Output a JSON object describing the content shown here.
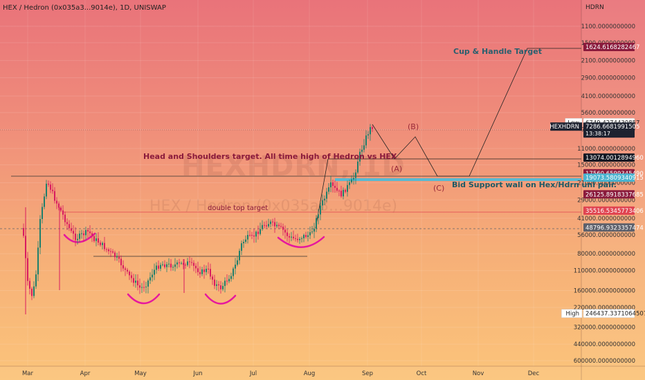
{
  "header": {
    "symbol_line": "HEX / Hedron (0x035a3...9014e), 1D, UNISWAP"
  },
  "watermark": {
    "ticker": "HEXHDRN, 1D",
    "name": "HEX / Hedron (0x035a3...9014e)"
  },
  "chart_data": {
    "type": "candlestick",
    "title": "HEX / Hedron (0x035a3...9014e), 1D, UNISWAP",
    "yaxis_title": "HDRN",
    "yaxis_scale": "log",
    "yaxis_inverted": true,
    "y_ticks": [
      "1100.0000000000",
      "1500.0000000000",
      "2100.0000000000",
      "2900.0000000000",
      "4100.0000000000",
      "5600.0000000000",
      "7700.0000000000",
      "11000.0000000000",
      "15000.0000000000",
      "21000.0000000000",
      "29000.0000000000",
      "41000.0000000000",
      "56000.0000000000",
      "80000.0000000000",
      "110000.0000000000",
      "160000.0000000000",
      "220000.0000000000",
      "320000.0000000000",
      "440000.0000000000",
      "600000.0000000000"
    ],
    "x_ticks": [
      "Mar",
      "Apr",
      "May",
      "Jun",
      "Jul",
      "Aug",
      "Sep",
      "Oct",
      "Nov",
      "Dec"
    ],
    "price_tags": [
      {
        "label": "",
        "value": "1624.6168282467",
        "color": "#8a1a3c"
      },
      {
        "label": "Low",
        "value": "6749.4274430857",
        "color": "#ffffff"
      },
      {
        "label": "HEXHDRN",
        "value": "7286.6681991505",
        "sub": "13:38:17",
        "color": "#1e2230"
      },
      {
        "label": "",
        "value": "13074.0012894960",
        "color": "#131722"
      },
      {
        "label": "",
        "value": "17560.6599345490",
        "color": "#8a1a3c"
      },
      {
        "label": "",
        "value": "19073.5809340915",
        "color": "#4ab3cf"
      },
      {
        "label": "",
        "value": "26125.8918337685",
        "color": "#8a1a3c"
      },
      {
        "label": "",
        "value": "35516.5345773406",
        "color": "#e04451"
      },
      {
        "label": "",
        "value": "48796.9323357474",
        "color": "#5d606b"
      },
      {
        "label": "High",
        "value": "246437.3371064507",
        "color": "#ffffff"
      }
    ],
    "annotations": [
      {
        "text": "Cup & Handle Target",
        "color": "#2a5f6e"
      },
      {
        "text": "(B)",
        "color": "#9a2a3a"
      },
      {
        "text": "Head and Shoulders target. All time high of Hedron vs HEX",
        "color": "#8a1a3c"
      },
      {
        "text": "(A)",
        "color": "#9a2a3a"
      },
      {
        "text": "(C)",
        "color": "#9a2a3a"
      },
      {
        "text": "Bid Support wall on Hex/Hdrn uni pair.",
        "color": "#1d5a66"
      },
      {
        "text": "double top target",
        "color": "#8a1a3c"
      }
    ]
  }
}
